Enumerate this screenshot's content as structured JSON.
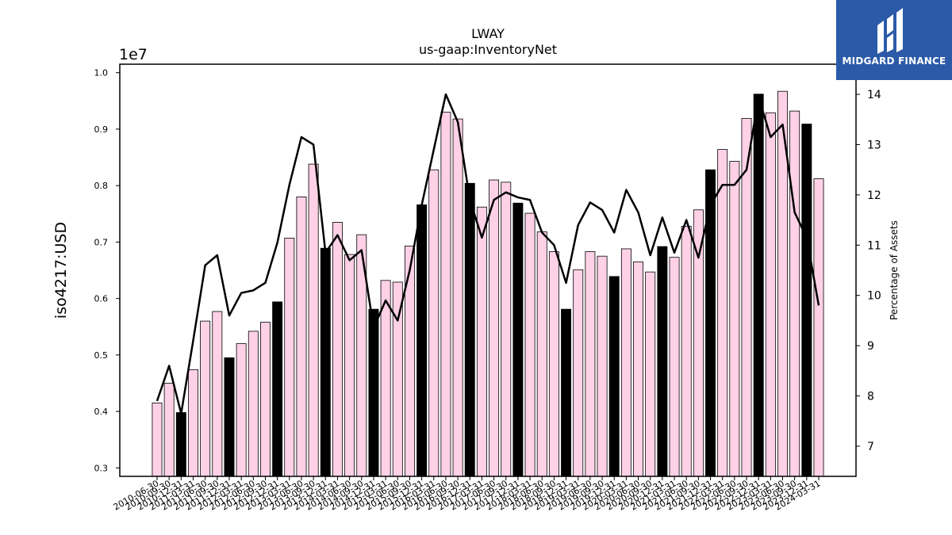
{
  "chart_data": {
    "type": "bar+line",
    "title": "LWAY",
    "subtitle": "us-gaap:InventoryNet",
    "ylabel_left": "iso4217:USD",
    "ylabel_right": "Percentage of Assets",
    "left_scale_label": "1e7",
    "ylim_left": [
      0.285,
      1.015
    ],
    "ylim_right": [
      6.4,
      14.6
    ],
    "yticks_left": [
      "0.3",
      "0.4",
      "0.5",
      "0.6",
      "0.7",
      "0.8",
      "0.9",
      "1.0"
    ],
    "yticks_right": [
      "7",
      "8",
      "9",
      "10",
      "11",
      "12",
      "13",
      "14"
    ],
    "x_tick_labels": [
      "2010-06-30",
      "2010-09-30",
      "2010-12-31",
      "2011-03-31",
      "2011-06-30",
      "2011-09-30",
      "2011-12-31",
      "2012-03-31",
      "2012-06-30",
      "2012-09-30",
      "2012-12-31",
      "2013-03-31",
      "2013-06-30",
      "2013-09-30",
      "2013-12-31",
      "2014-03-31",
      "2014-06-30",
      "2014-09-30",
      "2014-12-31",
      "2015-03-31",
      "2015-06-30",
      "2015-09-30",
      "2015-12-31",
      "2016-03-31",
      "2016-06-30",
      "2016-09-30",
      "2016-12-31",
      "2017-03-31",
      "2017-06-30",
      "2017-09-30",
      "2017-12-31",
      "2018-03-31",
      "2018-06-30",
      "2018-09-30",
      "2018-12-31",
      "2019-03-31",
      "2019-06-30",
      "2019-09-30",
      "2019-12-31",
      "2020-03-31",
      "2020-06-30",
      "2020-09-30",
      "2020-12-31",
      "2021-03-31",
      "2021-06-30",
      "2021-09-30",
      "2021-12-31",
      "2022-03-31",
      "2022-06-30",
      "2022-09-30",
      "2022-12-31",
      "2023-03-31",
      "2023-06-30",
      "2023-09-30",
      "2023-12-31",
      "2024-03-31"
    ],
    "series": [
      {
        "type": "bar",
        "values": [
          0.415,
          0.45,
          0.398,
          0.474,
          0.56,
          0.577,
          0.495,
          0.52,
          0.542,
          0.558,
          0.594,
          0.707,
          0.78,
          0.838,
          0.689,
          0.735,
          0.678,
          0.713,
          0.581,
          0.632,
          0.629,
          0.693,
          0.766,
          0.828,
          0.93,
          0.918,
          0.804,
          0.762,
          0.81,
          0.806,
          0.769,
          0.751,
          0.718,
          0.683,
          0.581,
          0.651,
          0.683,
          0.675,
          0.639,
          0.688,
          0.665,
          0.647,
          0.692,
          0.673,
          0.728,
          0.757,
          0.828,
          0.864,
          0.843,
          0.919,
          0.962,
          0.929,
          0.967,
          0.932,
          0.909,
          0.812
        ],
        "highlight_indices": [
          2,
          6,
          10,
          14,
          18,
          22,
          26,
          30,
          34,
          38,
          42,
          46,
          50,
          54
        ],
        "colors": {
          "normal": "#ffd1e6",
          "highlight": "#000000",
          "edge": "#000000"
        }
      },
      {
        "type": "line",
        "values": [
          7.9,
          8.6,
          7.65,
          9.1,
          10.6,
          10.8,
          9.6,
          10.05,
          10.1,
          10.25,
          11.05,
          12.2,
          13.15,
          13.0,
          10.85,
          11.2,
          10.7,
          10.9,
          9.35,
          9.9,
          9.5,
          10.5,
          11.8,
          12.9,
          14.0,
          13.45,
          11.9,
          11.15,
          11.9,
          12.05,
          11.95,
          11.9,
          11.25,
          11.0,
          10.25,
          11.4,
          11.85,
          11.7,
          11.25,
          12.1,
          11.65,
          10.8,
          11.55,
          10.85,
          11.5,
          10.75,
          11.8,
          12.2,
          12.2,
          12.5,
          13.95,
          13.15,
          13.4,
          11.65,
          11.15,
          9.8
        ],
        "color": "#000000"
      }
    ],
    "grid": false,
    "legend": "none"
  },
  "logo": {
    "text": "MIDGARD FINANCE",
    "icon": "midgard-logo-icon",
    "background": "#2b5aa8"
  }
}
